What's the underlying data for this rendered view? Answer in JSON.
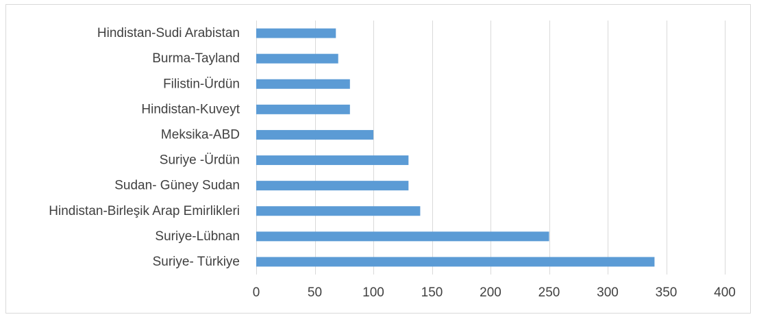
{
  "chart_data": {
    "type": "bar",
    "orientation": "horizontal",
    "categories": [
      "Hindistan-Sudi Arabistan",
      "Burma-Tayland",
      "Filistin-Ürdün",
      "Hindistan-Kuveyt",
      "Meksika-ABD",
      "Suriye -Ürdün",
      "Sudan- Güney Sudan",
      "Hindistan-Birleşik Arap Emirlikleri",
      "Suriye-Lübnan",
      "Suriye- Türkiye"
    ],
    "values": [
      68,
      70,
      80,
      80,
      100,
      130,
      130,
      140,
      250,
      340
    ],
    "title": "",
    "xlabel": "",
    "ylabel": "",
    "xlim": [
      0,
      400
    ],
    "x_ticks": [
      0,
      50,
      100,
      150,
      200,
      250,
      300,
      350,
      400
    ],
    "grid": "vertical",
    "legend": "none",
    "bar_color": "#5b9bd5",
    "grid_color": "#d9d9d9",
    "text_color": "#404040"
  }
}
